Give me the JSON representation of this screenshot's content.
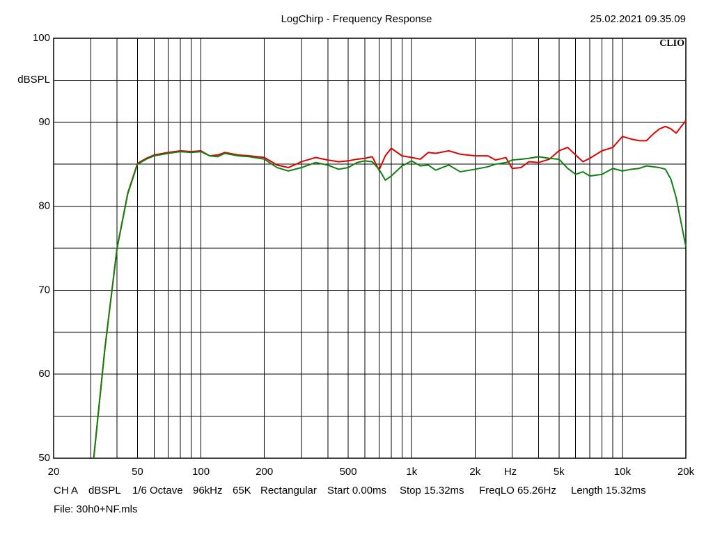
{
  "chart_data": {
    "type": "line",
    "title": "LogChirp - Frequency Response",
    "timestamp": "25.02.2021 09.35.09",
    "logo": "CLIO",
    "y_label": "dBSPL",
    "x_label": "Hz",
    "x_log": true,
    "grid": true,
    "xlim": [
      20,
      20000
    ],
    "ylim": [
      50,
      100
    ],
    "yticks": [
      50,
      60,
      70,
      80,
      90,
      100
    ],
    "yminor": [
      55,
      65,
      75,
      85,
      95
    ],
    "xticks": [
      20,
      50,
      100,
      200,
      500,
      {
        "value": 1000,
        "label": "1k"
      },
      {
        "value": 2000,
        "label": "2k"
      },
      {
        "value": 5000,
        "label": "5k"
      },
      {
        "value": 10000,
        "label": "10k"
      },
      {
        "value": 20000,
        "label": "20k"
      }
    ],
    "xminor": [
      30,
      40,
      60,
      70,
      80,
      90,
      300,
      400,
      600,
      700,
      800,
      900,
      3000,
      4000,
      6000,
      7000,
      8000,
      9000
    ],
    "x": [
      31,
      35,
      40,
      45,
      50,
      55,
      60,
      70,
      80,
      90,
      100,
      110,
      120,
      130,
      150,
      170,
      200,
      230,
      260,
      300,
      350,
      400,
      450,
      500,
      550,
      600,
      650,
      700,
      750,
      800,
      900,
      1000,
      1100,
      1200,
      1300,
      1500,
      1700,
      2000,
      2300,
      2500,
      2800,
      3000,
      3300,
      3600,
      4000,
      4500,
      5000,
      5500,
      6000,
      6500,
      7000,
      8000,
      9000,
      10000,
      11000,
      12000,
      13000,
      14000,
      15000,
      16000,
      17000,
      18000,
      20000
    ],
    "series": [
      {
        "color": "#e00000",
        "values": [
          50,
          63,
          75,
          81.6,
          85.1,
          85.7,
          86.1,
          86.4,
          86.6,
          86.5,
          86.6,
          86.0,
          86.1,
          86.4,
          86.1,
          86.0,
          85.8,
          84.9,
          84.6,
          85.3,
          85.8,
          85.5,
          85.3,
          85.4,
          85.6,
          85.7,
          85.9,
          84.3,
          86.0,
          86.9,
          86.0,
          85.8,
          85.6,
          86.4,
          86.3,
          86.6,
          86.2,
          86.0,
          86.0,
          85.5,
          85.8,
          84.5,
          84.6,
          85.3,
          85.2,
          85.6,
          86.6,
          87.0,
          86.1,
          85.3,
          85.7,
          86.6,
          87.0,
          88.3,
          88.0,
          87.8,
          87.8,
          88.6,
          89.2,
          89.5,
          89.2,
          88.7,
          90.2
        ]
      },
      {
        "color": "#108010",
        "values": [
          50,
          63,
          75,
          81.5,
          85.0,
          85.6,
          86.0,
          86.3,
          86.5,
          86.4,
          86.5,
          86.0,
          85.9,
          86.3,
          86.0,
          85.9,
          85.6,
          84.6,
          84.2,
          84.6,
          85.2,
          84.9,
          84.4,
          84.6,
          85.2,
          85.4,
          85.3,
          84.4,
          83.1,
          83.6,
          84.8,
          85.4,
          84.8,
          84.9,
          84.3,
          84.9,
          84.1,
          84.4,
          84.7,
          85.0,
          85.2,
          85.5,
          85.6,
          85.7,
          85.9,
          85.7,
          85.6,
          84.5,
          83.8,
          84.1,
          83.6,
          83.8,
          84.5,
          84.2,
          84.4,
          84.5,
          84.8,
          84.7,
          84.6,
          84.4,
          83.2,
          81.0,
          75.2
        ]
      }
    ],
    "info": [
      "CH A",
      "dBSPL",
      "1/6 Octave",
      "96kHz",
      "65K",
      "Rectangular",
      "Start 0.00ms",
      "Stop 15.32ms",
      "FreqLO 65.26Hz",
      "Length 15.32ms"
    ],
    "file": "File: 30h0+NF.mls"
  }
}
